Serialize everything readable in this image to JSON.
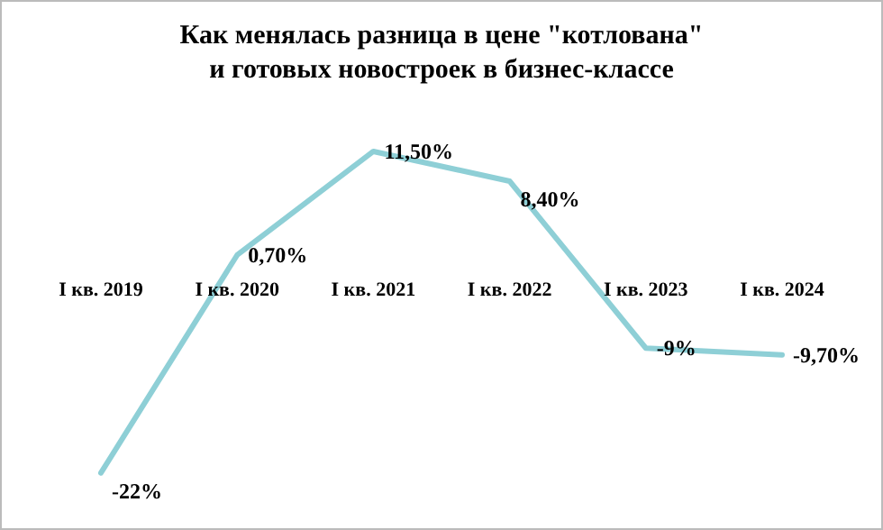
{
  "chart_data": {
    "type": "line",
    "title": "Как менялась разница в цене \"котлована\"\nи готовых новостроек в бизнес-классе",
    "categories": [
      "I кв. 2019",
      "I кв. 2020",
      "I кв. 2021",
      "I кв. 2022",
      "I кв. 2023",
      "I кв. 2024"
    ],
    "series": [
      {
        "color": "#8ecfd6",
        "values": [
          -22,
          0.7,
          11.5,
          8.4,
          -9,
          -9.7
        ],
        "value_labels": [
          "-22%",
          "0,70%",
          "11,50%",
          "8,40%",
          "-9%",
          "-9,70%"
        ]
      }
    ],
    "marker": "none"
  }
}
